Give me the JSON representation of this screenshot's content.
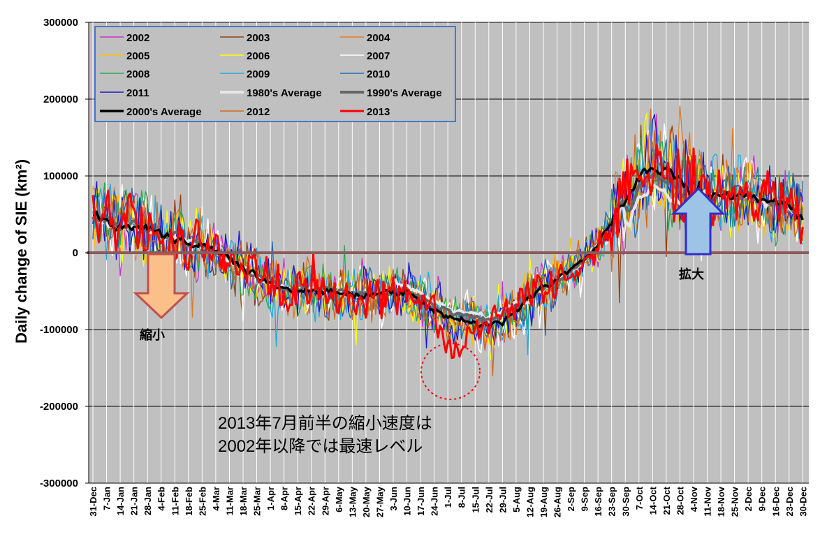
{
  "chart_data": {
    "type": "line",
    "ylabel": "Daily change of SIE (km²)",
    "ylim": [
      -300000,
      300000
    ],
    "yticks": [
      300000,
      200000,
      100000,
      0,
      -100000,
      -200000,
      -300000
    ],
    "ytick_labels": [
      "300000",
      "200000",
      "100000",
      "0",
      "-100000",
      "-200000",
      "-300000"
    ],
    "xticks": [
      "31-Dec",
      "7-Jan",
      "14-Jan",
      "21-Jan",
      "28-Jan",
      "4-Feb",
      "11-Feb",
      "18-Feb",
      "25-Feb",
      "4-Mar",
      "11-Mar",
      "18-Mar",
      "25-Mar",
      "1-Apr",
      "8-Apr",
      "15-Apr",
      "22-Apr",
      "29-Apr",
      "6-May",
      "13-May",
      "20-May",
      "27-May",
      "3-Jun",
      "10-Jun",
      "17-Jun",
      "24-Jun",
      "1-Jul",
      "8-Jul",
      "15-Jul",
      "22-Jul",
      "29-Jul",
      "5-Aug",
      "12-Aug",
      "19-Aug",
      "26-Aug",
      "2-Sep",
      "9-Sep",
      "16-Sep",
      "23-Sep",
      "30-Sep",
      "7-Oct",
      "14-Oct",
      "21-Oct",
      "28-Oct",
      "4-Nov",
      "11-Nov",
      "18-Nov",
      "25-Nov",
      "2-Dec",
      "9-Dec",
      "16-Dec",
      "23-Dec",
      "30-Dec"
    ],
    "grid": true,
    "legend_position": "top-left",
    "series": [
      {
        "name": "2002",
        "color": "#cc33cc",
        "width": 1.3
      },
      {
        "name": "2003",
        "color": "#8b4513",
        "width": 1.3
      },
      {
        "name": "2004",
        "color": "#e07b20",
        "width": 1.3
      },
      {
        "name": "2005",
        "color": "#ffc000",
        "width": 1.3
      },
      {
        "name": "2006",
        "color": "#ffff00",
        "width": 1.3
      },
      {
        "name": "2007",
        "color": "#ffffff",
        "width": 1.6
      },
      {
        "name": "2008",
        "color": "#22aa55",
        "width": 1.3
      },
      {
        "name": "2009",
        "color": "#22aadd",
        "width": 1.3
      },
      {
        "name": "2010",
        "color": "#1f6fb2",
        "width": 1.3
      },
      {
        "name": "2011",
        "color": "#1a1acc",
        "width": 1.3
      },
      {
        "name": "1980's Average",
        "color": "#e6e6e6",
        "width": 4
      },
      {
        "name": "1990's Average",
        "color": "#666666",
        "width": 4
      },
      {
        "name": "2000's Average",
        "color": "#000000",
        "width": 3.5
      },
      {
        "name": "2012",
        "color": "#d2691e",
        "width": 1.3
      },
      {
        "name": "2013",
        "color": "#ff0000",
        "width": 3
      }
    ],
    "profile_2000s_average": [
      {
        "x": "31-Dec",
        "y": 50000
      },
      {
        "x": "7-Jan",
        "y": 40000
      },
      {
        "x": "14-Jan",
        "y": 35000
      },
      {
        "x": "21-Jan",
        "y": 38000
      },
      {
        "x": "28-Jan",
        "y": 30000
      },
      {
        "x": "4-Feb",
        "y": 22000
      },
      {
        "x": "11-Feb",
        "y": 20000
      },
      {
        "x": "18-Feb",
        "y": 15000
      },
      {
        "x": "25-Feb",
        "y": 10000
      },
      {
        "x": "4-Mar",
        "y": 0
      },
      {
        "x": "11-Mar",
        "y": -10000
      },
      {
        "x": "18-Mar",
        "y": -20000
      },
      {
        "x": "25-Mar",
        "y": -30000
      },
      {
        "x": "1-Apr",
        "y": -40000
      },
      {
        "x": "8-Apr",
        "y": -45000
      },
      {
        "x": "15-Apr",
        "y": -50000
      },
      {
        "x": "22-Apr",
        "y": -48000
      },
      {
        "x": "29-Apr",
        "y": -50000
      },
      {
        "x": "6-May",
        "y": -52000
      },
      {
        "x": "13-May",
        "y": -55000
      },
      {
        "x": "20-May",
        "y": -55000
      },
      {
        "x": "27-May",
        "y": -55000
      },
      {
        "x": "3-Jun",
        "y": -50000
      },
      {
        "x": "10-Jun",
        "y": -55000
      },
      {
        "x": "17-Jun",
        "y": -65000
      },
      {
        "x": "24-Jun",
        "y": -75000
      },
      {
        "x": "1-Jul",
        "y": -85000
      },
      {
        "x": "8-Jul",
        "y": -88000
      },
      {
        "x": "15-Jul",
        "y": -92000
      },
      {
        "x": "22-Jul",
        "y": -95000
      },
      {
        "x": "29-Jul",
        "y": -90000
      },
      {
        "x": "5-Aug",
        "y": -75000
      },
      {
        "x": "12-Aug",
        "y": -60000
      },
      {
        "x": "19-Aug",
        "y": -45000
      },
      {
        "x": "26-Aug",
        "y": -35000
      },
      {
        "x": "2-Sep",
        "y": -25000
      },
      {
        "x": "9-Sep",
        "y": -10000
      },
      {
        "x": "16-Sep",
        "y": 10000
      },
      {
        "x": "23-Sep",
        "y": 40000
      },
      {
        "x": "30-Sep",
        "y": 70000
      },
      {
        "x": "7-Oct",
        "y": 95000
      },
      {
        "x": "14-Oct",
        "y": 115000
      },
      {
        "x": "21-Oct",
        "y": 105000
      },
      {
        "x": "28-Oct",
        "y": 90000
      },
      {
        "x": "4-Nov",
        "y": 80000
      },
      {
        "x": "11-Nov",
        "y": 75000
      },
      {
        "x": "18-Nov",
        "y": 78000
      },
      {
        "x": "25-Nov",
        "y": 72000
      },
      {
        "x": "2-Dec",
        "y": 75000
      },
      {
        "x": "9-Dec",
        "y": 70000
      },
      {
        "x": "16-Dec",
        "y": 65000
      },
      {
        "x": "23-Dec",
        "y": 60000
      },
      {
        "x": "30-Dec",
        "y": 45000
      }
    ],
    "annotations": {
      "note_line1": "2013年7月前半の縮小速度は",
      "note_line2": "2002年以降では最速レベル",
      "shrink_label": "縮小",
      "expand_label": "拡大"
    }
  },
  "colors": {
    "plot_background": "#c0c0c0",
    "zero_line": "#8b5a5a",
    "shrink_arrow": "#fbc08a",
    "shrink_arrow_border": "#c0504d",
    "expand_arrow": "#9dc3e6",
    "expand_arrow_border": "#2e2ecc",
    "highlight_circle": "#ff0000",
    "legend_border": "#2060c0"
  }
}
